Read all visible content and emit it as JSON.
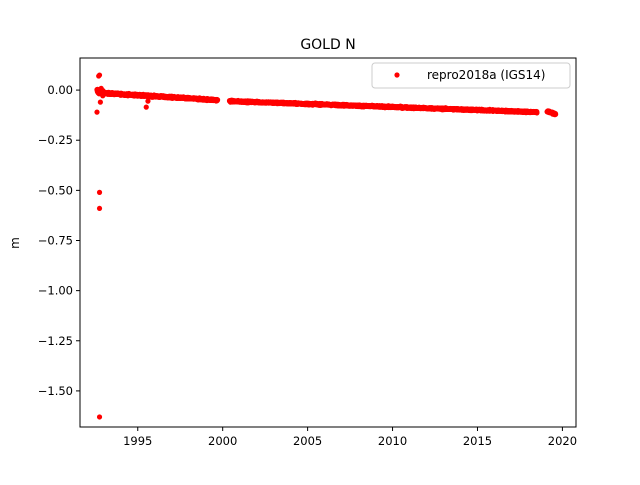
{
  "chart_data": {
    "type": "scatter",
    "title": "GOLD N",
    "xlabel": "",
    "ylabel": "m",
    "xlim": [
      1991.6,
      2020.8
    ],
    "ylim": [
      -1.68,
      0.16
    ],
    "x_ticks": [
      1995,
      2000,
      2005,
      2010,
      2015,
      2020
    ],
    "x_tick_labels": [
      "1995",
      "2000",
      "2005",
      "2010",
      "2015",
      "2020"
    ],
    "y_ticks": [
      0.0,
      -0.25,
      -0.5,
      -0.75,
      -1.0,
      -1.25,
      -1.5
    ],
    "y_tick_labels": [
      "0.00",
      "−0.25",
      "−0.50",
      "−0.75",
      "−1.00",
      "−1.25",
      "−1.50"
    ],
    "grid": false,
    "legend_position": "top-right",
    "series": [
      {
        "name": "repro2018a (IGS14)",
        "color": "#ff0000",
        "marker": "dot",
        "segments": [
          {
            "x_start": 1992.6,
            "x_end": 1993.0,
            "y_start": -0.005,
            "y_end": -0.01,
            "scatter": 0.025
          },
          {
            "x_start": 1993.0,
            "x_end": 1999.7,
            "y_start": -0.015,
            "y_end": -0.05,
            "scatter": 0.008
          },
          {
            "x_start": 2000.4,
            "x_end": 2018.5,
            "y_start": -0.055,
            "y_end": -0.11,
            "scatter": 0.007
          },
          {
            "x_start": 2019.1,
            "x_end": 2019.6,
            "y_start": -0.105,
            "y_end": -0.12,
            "scatter": 0.006
          }
        ],
        "outliers": [
          {
            "x": 1992.7,
            "y": 0.07
          },
          {
            "x": 1992.75,
            "y": 0.075
          },
          {
            "x": 1992.6,
            "y": -0.11
          },
          {
            "x": 1992.8,
            "y": -0.06
          },
          {
            "x": 1992.75,
            "y": -0.51
          },
          {
            "x": 1992.75,
            "y": -0.59
          },
          {
            "x": 1992.75,
            "y": -1.63
          },
          {
            "x": 1995.5,
            "y": -0.085
          },
          {
            "x": 1995.6,
            "y": -0.055
          }
        ]
      }
    ]
  }
}
